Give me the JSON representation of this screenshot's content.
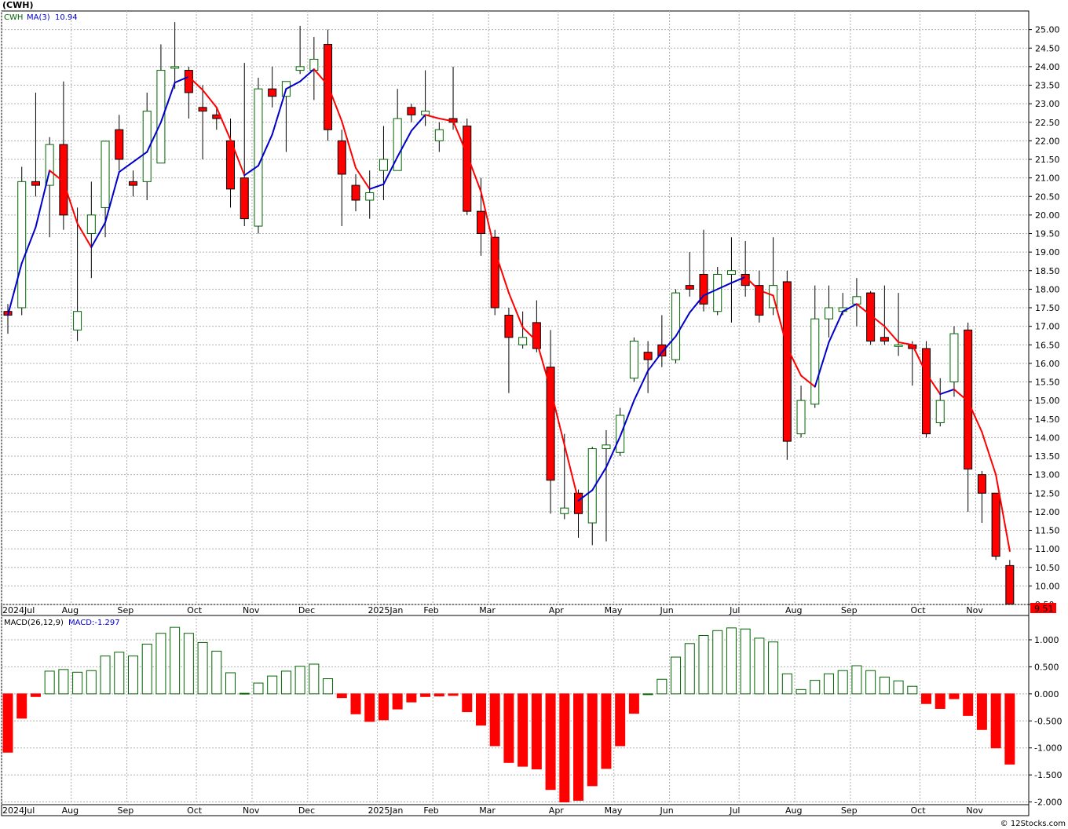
{
  "header": {
    "symbol": "(CWH)",
    "price_legend_symbol": "CWH",
    "price_legend_ma": "MA(3)",
    "price_legend_ma_value": "10.94",
    "macd_legend_label": "MACD(26,12,9)",
    "macd_legend_value": "MACD:-1.297",
    "last_price_tag": "9.51",
    "footer": "© 12Stocks.com"
  },
  "colors": {
    "up_candle": "#006400",
    "down_candle": "#ff0000",
    "ma_up": "#0000cc",
    "ma_down": "#ff0000",
    "grid": "#b0b0b0",
    "macd_positive": "#006400",
    "macd_negative": "#ff0000",
    "price_tag_bg": "#ff0000"
  },
  "chart_data": [
    {
      "type": "candlestick",
      "title": "(CWH)",
      "ylim": [
        9.5,
        25.5
      ],
      "y_ticks": [
        "25.00",
        "24.50",
        "24.00",
        "23.50",
        "23.00",
        "22.50",
        "22.00",
        "21.50",
        "21.00",
        "20.50",
        "20.00",
        "19.50",
        "19.00",
        "18.50",
        "18.00",
        "17.50",
        "17.00",
        "16.50",
        "16.00",
        "15.50",
        "15.00",
        "14.50",
        "14.00",
        "13.50",
        "13.00",
        "12.50",
        "12.00",
        "11.50",
        "11.00",
        "10.50",
        "10.00",
        "9.50"
      ],
      "x_labels": [
        "2024Jul",
        "Aug",
        "Sep",
        "Oct",
        "Nov",
        "Dec",
        "2025Jan",
        "Feb",
        "Mar",
        "Apr",
        "May",
        "Jun",
        "Jul",
        "Aug",
        "Sep",
        "Oct",
        "Nov"
      ],
      "x_label_weeks": [
        0,
        5,
        9,
        14,
        18,
        22,
        27,
        31,
        35,
        40,
        44,
        48,
        53,
        57,
        61,
        66,
        70
      ],
      "grid": true,
      "series": [
        {
          "name": "CWH",
          "candles": [
            {
              "o": 17.4,
              "h": 17.6,
              "l": 16.8,
              "c": 17.3
            },
            {
              "o": 17.5,
              "h": 21.3,
              "l": 17.3,
              "c": 20.9
            },
            {
              "o": 20.9,
              "h": 23.3,
              "l": 20.5,
              "c": 20.8
            },
            {
              "o": 20.8,
              "h": 22.1,
              "l": 19.4,
              "c": 21.9
            },
            {
              "o": 21.9,
              "h": 23.6,
              "l": 19.6,
              "c": 20.0
            },
            {
              "o": 16.9,
              "h": 20.2,
              "l": 16.6,
              "c": 17.4
            },
            {
              "o": 19.5,
              "h": 20.9,
              "l": 18.3,
              "c": 20.0
            },
            {
              "o": 20.2,
              "h": 22.0,
              "l": 19.4,
              "c": 21.99
            },
            {
              "o": 22.3,
              "h": 22.7,
              "l": 21.2,
              "c": 21.5
            },
            {
              "o": 20.9,
              "h": 21.2,
              "l": 20.5,
              "c": 20.8
            },
            {
              "o": 20.9,
              "h": 23.3,
              "l": 20.4,
              "c": 22.8
            },
            {
              "o": 21.4,
              "h": 24.6,
              "l": 21.4,
              "c": 23.9
            },
            {
              "o": 24.0,
              "h": 25.2,
              "l": 23.4,
              "c": 24.0
            },
            {
              "o": 23.9,
              "h": 24.0,
              "l": 22.6,
              "c": 23.3
            },
            {
              "o": 22.9,
              "h": 23.5,
              "l": 21.5,
              "c": 22.8
            },
            {
              "o": 22.7,
              "h": 22.9,
              "l": 22.3,
              "c": 22.6
            },
            {
              "o": 22.0,
              "h": 22.6,
              "l": 20.2,
              "c": 20.7
            },
            {
              "o": 21.0,
              "h": 24.1,
              "l": 19.7,
              "c": 19.9
            },
            {
              "o": 19.7,
              "h": 23.7,
              "l": 19.5,
              "c": 23.4
            },
            {
              "o": 23.4,
              "h": 24.0,
              "l": 22.9,
              "c": 23.2
            },
            {
              "o": 23.2,
              "h": 23.5,
              "l": 21.7,
              "c": 23.6
            },
            {
              "o": 23.9,
              "h": 25.1,
              "l": 23.8,
              "c": 24.0
            },
            {
              "o": 23.9,
              "h": 24.8,
              "l": 23.1,
              "c": 24.2
            },
            {
              "o": 24.6,
              "h": 25.0,
              "l": 22.0,
              "c": 22.3
            },
            {
              "o": 22.0,
              "h": 22.3,
              "l": 19.7,
              "c": 21.1
            },
            {
              "o": 20.8,
              "h": 21.1,
              "l": 20.1,
              "c": 20.4
            },
            {
              "o": 20.4,
              "h": 21.2,
              "l": 19.9,
              "c": 20.6
            },
            {
              "o": 21.2,
              "h": 22.4,
              "l": 20.4,
              "c": 21.5
            },
            {
              "o": 21.2,
              "h": 23.4,
              "l": 21.2,
              "c": 22.6
            },
            {
              "o": 22.9,
              "h": 23.0,
              "l": 22.5,
              "c": 22.7
            },
            {
              "o": 22.7,
              "h": 23.9,
              "l": 22.4,
              "c": 22.8
            },
            {
              "o": 22.0,
              "h": 22.5,
              "l": 21.7,
              "c": 22.3
            },
            {
              "o": 22.6,
              "h": 24.0,
              "l": 22.3,
              "c": 22.5
            },
            {
              "o": 22.4,
              "h": 22.6,
              "l": 20.0,
              "c": 20.1
            },
            {
              "o": 20.1,
              "h": 21.0,
              "l": 18.9,
              "c": 19.5
            },
            {
              "o": 19.4,
              "h": 19.6,
              "l": 17.3,
              "c": 17.5
            },
            {
              "o": 17.3,
              "h": 17.5,
              "l": 15.2,
              "c": 16.7
            },
            {
              "o": 16.5,
              "h": 17.4,
              "l": 16.4,
              "c": 16.7
            },
            {
              "o": 17.1,
              "h": 17.7,
              "l": 16.3,
              "c": 16.4
            },
            {
              "o": 15.9,
              "h": 16.9,
              "l": 11.95,
              "c": 12.85
            },
            {
              "o": 11.95,
              "h": 14.1,
              "l": 11.8,
              "c": 12.1
            },
            {
              "o": 12.5,
              "h": 12.6,
              "l": 11.3,
              "c": 11.95
            },
            {
              "o": 11.7,
              "h": 13.75,
              "l": 11.1,
              "c": 13.7
            },
            {
              "o": 13.7,
              "h": 14.2,
              "l": 11.2,
              "c": 13.8
            },
            {
              "o": 13.6,
              "h": 14.8,
              "l": 13.5,
              "c": 14.6
            },
            {
              "o": 15.6,
              "h": 16.7,
              "l": 15.5,
              "c": 16.6
            },
            {
              "o": 16.3,
              "h": 16.6,
              "l": 15.2,
              "c": 16.1
            },
            {
              "o": 16.5,
              "h": 17.3,
              "l": 15.9,
              "c": 16.2
            },
            {
              "o": 16.1,
              "h": 18.0,
              "l": 16.0,
              "c": 17.9
            },
            {
              "o": 18.1,
              "h": 19.0,
              "l": 17.8,
              "c": 18.0
            },
            {
              "o": 18.4,
              "h": 19.6,
              "l": 17.4,
              "c": 17.6
            },
            {
              "o": 17.4,
              "h": 18.6,
              "l": 17.3,
              "c": 18.4
            },
            {
              "o": 18.4,
              "h": 19.4,
              "l": 17.1,
              "c": 18.5
            },
            {
              "o": 18.4,
              "h": 19.3,
              "l": 17.8,
              "c": 18.1
            },
            {
              "o": 18.1,
              "h": 18.5,
              "l": 17.1,
              "c": 17.3
            },
            {
              "o": 17.5,
              "h": 19.4,
              "l": 17.3,
              "c": 18.1
            },
            {
              "o": 18.2,
              "h": 18.5,
              "l": 13.4,
              "c": 13.9
            },
            {
              "o": 14.1,
              "h": 15.4,
              "l": 14.0,
              "c": 15.0
            },
            {
              "o": 14.9,
              "h": 18.1,
              "l": 14.8,
              "c": 17.2
            },
            {
              "o": 17.2,
              "h": 18.1,
              "l": 16.7,
              "c": 17.5
            },
            {
              "o": 17.4,
              "h": 17.9,
              "l": 17.3,
              "c": 17.5
            },
            {
              "o": 17.6,
              "h": 18.3,
              "l": 17.0,
              "c": 17.8
            },
            {
              "o": 17.9,
              "h": 17.95,
              "l": 16.5,
              "c": 16.6
            },
            {
              "o": 16.7,
              "h": 18.1,
              "l": 16.5,
              "c": 16.6
            },
            {
              "o": 16.5,
              "h": 17.9,
              "l": 16.2,
              "c": 16.5
            },
            {
              "o": 16.5,
              "h": 16.6,
              "l": 15.4,
              "c": 16.4
            },
            {
              "o": 16.4,
              "h": 16.6,
              "l": 14.0,
              "c": 14.1
            },
            {
              "o": 14.4,
              "h": 15.6,
              "l": 14.3,
              "c": 15.0
            },
            {
              "o": 15.5,
              "h": 17.0,
              "l": 15.1,
              "c": 16.8
            },
            {
              "o": 16.9,
              "h": 17.1,
              "l": 12.0,
              "c": 13.15
            },
            {
              "o": 13.0,
              "h": 13.1,
              "l": 11.7,
              "c": 12.5
            },
            {
              "o": 12.5,
              "h": 12.5,
              "l": 10.7,
              "c": 10.8
            },
            {
              "o": 10.55,
              "h": 10.7,
              "l": 9.51,
              "c": 9.51
            }
          ]
        },
        {
          "name": "MA(3)",
          "values": [
            17.3,
            18.7,
            19.67,
            21.2,
            20.9,
            19.77,
            19.13,
            19.8,
            21.16,
            21.43,
            21.7,
            22.5,
            23.57,
            23.73,
            23.37,
            22.9,
            22.03,
            21.07,
            21.33,
            22.17,
            23.4,
            23.6,
            23.93,
            23.5,
            22.53,
            21.27,
            20.7,
            20.83,
            21.57,
            22.27,
            22.7,
            22.6,
            22.53,
            21.63,
            20.63,
            19.03,
            17.9,
            16.97,
            16.6,
            15.3,
            13.8,
            12.3,
            12.58,
            13.2,
            14.03,
            15.0,
            15.8,
            16.3,
            16.73,
            17.37,
            17.83,
            18.0,
            18.17,
            18.33,
            17.97,
            17.83,
            16.43,
            15.67,
            15.37,
            16.57,
            17.4,
            17.6,
            17.3,
            17.0,
            16.57,
            16.5,
            15.73,
            15.17,
            15.3,
            14.98,
            14.15,
            13.0,
            10.94
          ]
        }
      ]
    },
    {
      "type": "bar",
      "title": "MACD(26,12,9)",
      "ylim": [
        -2.05,
        1.45
      ],
      "y_ticks": [
        "1.000",
        "0.500",
        "0.000",
        "-0.500",
        "-1.000",
        "-1.500",
        "-2.000"
      ],
      "x_labels": [
        "2024Jul",
        "Aug",
        "Sep",
        "Oct",
        "Nov",
        "Dec",
        "2025Jan",
        "Feb",
        "Mar",
        "Apr",
        "May",
        "Jun",
        "Jul",
        "Aug",
        "Sep",
        "Oct",
        "Nov"
      ],
      "grid": true,
      "series": [
        {
          "name": "MACD",
          "values": [
            -1.08,
            -0.45,
            -0.05,
            0.42,
            0.45,
            0.4,
            0.43,
            0.7,
            0.77,
            0.7,
            0.92,
            1.12,
            1.23,
            1.12,
            0.95,
            0.79,
            0.39,
            0.01,
            0.2,
            0.33,
            0.42,
            0.51,
            0.55,
            0.28,
            -0.07,
            -0.37,
            -0.51,
            -0.48,
            -0.28,
            -0.15,
            -0.05,
            -0.04,
            -0.03,
            -0.33,
            -0.58,
            -0.96,
            -1.27,
            -1.34,
            -1.39,
            -1.77,
            -2.0,
            -1.97,
            -1.7,
            -1.38,
            -0.96,
            -0.36,
            0.0,
            0.27,
            0.68,
            0.93,
            1.08,
            1.17,
            1.22,
            1.2,
            1.03,
            0.96,
            0.37,
            0.08,
            0.25,
            0.37,
            0.43,
            0.52,
            0.43,
            0.31,
            0.24,
            0.14,
            -0.18,
            -0.27,
            -0.09,
            -0.4,
            -0.66,
            -1.0,
            -1.3
          ]
        }
      ]
    }
  ]
}
